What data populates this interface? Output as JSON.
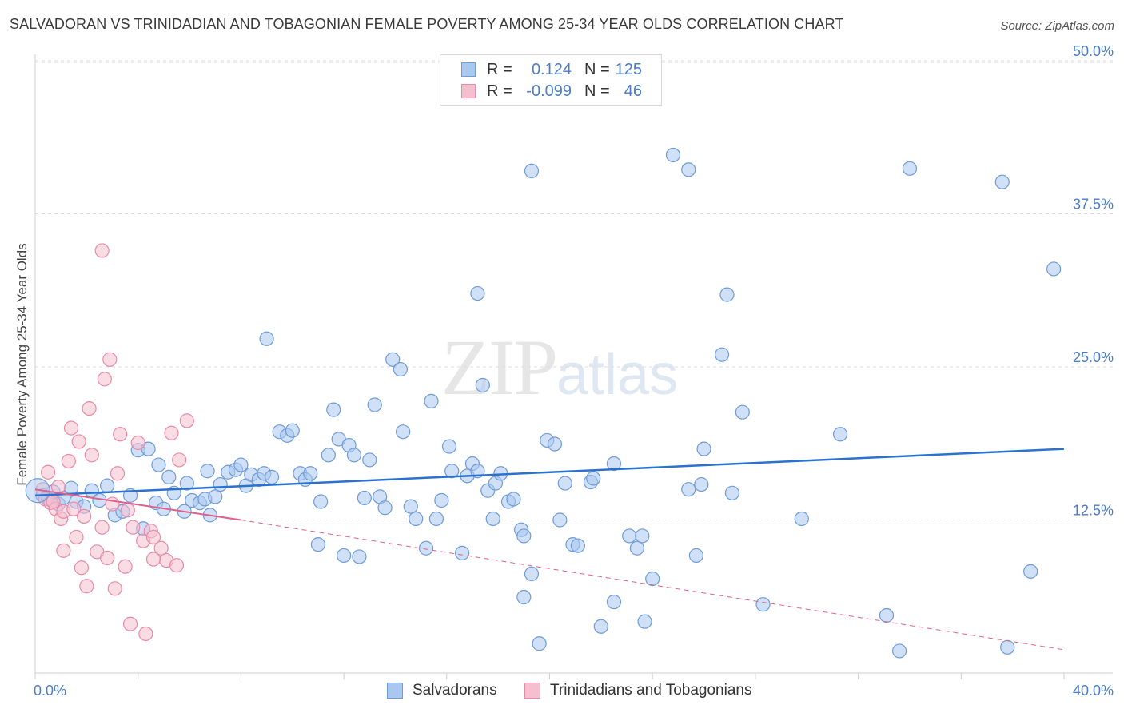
{
  "header": {
    "title": "SALVADORAN VS TRINIDADIAN AND TOBAGONIAN FEMALE POVERTY AMONG 25-34 YEAR OLDS CORRELATION CHART",
    "source": "Source: ZipAtlas.com"
  },
  "watermark": {
    "zip": "ZIP",
    "atlas": "atlas"
  },
  "legend_top": {
    "rows": [
      {
        "r_label": "R =",
        "r_value": "0.124",
        "n_label": "N =",
        "n_value": "125"
      },
      {
        "r_label": "R =",
        "r_value": "-0.099",
        "n_label": "N =",
        "n_value": "46"
      }
    ]
  },
  "legend_bottom": {
    "items": [
      {
        "label": "Salvadorans"
      },
      {
        "label": "Trinidadians and Tobagonians"
      }
    ]
  },
  "colors": {
    "blue_fill": "#a9c8f0",
    "blue_stroke": "#6e9bd9",
    "blue_line": "#2a72d0",
    "pink_fill": "#f5bfd0",
    "pink_stroke": "#e88aa8",
    "pink_line": "#e0608a",
    "grid": "#dcdcdc",
    "tick_text": "#4a7cc9"
  },
  "chart_data": {
    "type": "scatter",
    "title": "SALVADORAN VS TRINIDADIAN AND TOBAGONIAN FEMALE POVERTY AMONG 25-34 YEAR OLDS CORRELATION CHART",
    "xlabel": "",
    "ylabel": "Female Poverty Among 25-34 Year Olds",
    "xlim": [
      0,
      40
    ],
    "ylim": [
      0,
      50
    ],
    "x_tick_labels": [
      "0.0%",
      "40.0%"
    ],
    "y_ticks": [
      12.5,
      25.0,
      37.5,
      50.0
    ],
    "y_tick_labels": [
      "12.5%",
      "25.0%",
      "37.5%",
      "50.0%"
    ],
    "grid": true,
    "legend_position": "top-center",
    "series": [
      {
        "name": "Salvadorans",
        "trend": {
          "x": [
            0,
            40
          ],
          "y": [
            14.5,
            18.3
          ]
        },
        "points": [
          [
            0.3,
            14.5
          ],
          [
            0.5,
            14.2
          ],
          [
            0.7,
            14.8
          ],
          [
            0.9,
            13.8
          ],
          [
            1.1,
            14.3
          ],
          [
            1.4,
            15.1
          ],
          [
            1.6,
            14.0
          ],
          [
            1.9,
            13.6
          ],
          [
            2.2,
            14.9
          ],
          [
            2.5,
            14.1
          ],
          [
            2.8,
            15.3
          ],
          [
            3.1,
            12.9
          ],
          [
            3.4,
            13.2
          ],
          [
            3.7,
            14.5
          ],
          [
            4.0,
            18.2
          ],
          [
            4.2,
            11.8
          ],
          [
            4.4,
            18.3
          ],
          [
            4.7,
            13.9
          ],
          [
            5.0,
            13.4
          ],
          [
            5.2,
            16.0
          ],
          [
            5.4,
            14.7
          ],
          [
            5.8,
            13.2
          ],
          [
            5.9,
            15.5
          ],
          [
            6.1,
            14.1
          ],
          [
            6.4,
            13.9
          ],
          [
            6.6,
            14.2
          ],
          [
            6.8,
            12.9
          ],
          [
            7.0,
            14.4
          ],
          [
            7.2,
            15.4
          ],
          [
            7.5,
            16.4
          ],
          [
            7.8,
            16.6
          ],
          [
            8.0,
            17.0
          ],
          [
            8.2,
            15.3
          ],
          [
            8.4,
            16.2
          ],
          [
            8.7,
            15.8
          ],
          [
            8.9,
            16.3
          ],
          [
            9.2,
            16.0
          ],
          [
            9.5,
            19.7
          ],
          [
            9.0,
            27.3
          ],
          [
            9.8,
            19.4
          ],
          [
            10.0,
            19.8
          ],
          [
            10.3,
            16.3
          ],
          [
            10.5,
            15.8
          ],
          [
            10.7,
            16.3
          ],
          [
            11.1,
            14.0
          ],
          [
            11.0,
            10.5
          ],
          [
            11.4,
            17.8
          ],
          [
            11.6,
            21.5
          ],
          [
            11.8,
            19.1
          ],
          [
            12.0,
            9.6
          ],
          [
            12.2,
            18.6
          ],
          [
            12.4,
            17.8
          ],
          [
            12.6,
            9.5
          ],
          [
            13.0,
            17.4
          ],
          [
            13.2,
            21.9
          ],
          [
            13.4,
            14.4
          ],
          [
            13.6,
            13.5
          ],
          [
            13.9,
            25.6
          ],
          [
            14.2,
            24.8
          ],
          [
            14.6,
            13.6
          ],
          [
            14.8,
            12.6
          ],
          [
            15.2,
            10.2
          ],
          [
            15.4,
            22.2
          ],
          [
            15.6,
            12.6
          ],
          [
            15.8,
            14.1
          ],
          [
            16.1,
            18.5
          ],
          [
            16.2,
            16.5
          ],
          [
            16.6,
            9.8
          ],
          [
            16.8,
            16.1
          ],
          [
            17.0,
            17.1
          ],
          [
            17.2,
            16.5
          ],
          [
            17.4,
            23.5
          ],
          [
            17.6,
            14.9
          ],
          [
            17.8,
            12.6
          ],
          [
            17.9,
            15.5
          ],
          [
            17.2,
            31.0
          ],
          [
            18.1,
            16.3
          ],
          [
            18.4,
            14.0
          ],
          [
            18.6,
            14.2
          ],
          [
            18.9,
            11.7
          ],
          [
            19.0,
            11.2
          ],
          [
            19.3,
            41.0
          ],
          [
            19.3,
            8.1
          ],
          [
            19.0,
            6.2
          ],
          [
            19.6,
            2.4
          ],
          [
            19.9,
            19.0
          ],
          [
            20.2,
            18.7
          ],
          [
            20.4,
            12.5
          ],
          [
            20.6,
            15.5
          ],
          [
            20.9,
            10.5
          ],
          [
            21.1,
            10.4
          ],
          [
            21.6,
            15.6
          ],
          [
            21.7,
            15.9
          ],
          [
            22.0,
            3.8
          ],
          [
            22.5,
            17.1
          ],
          [
            22.5,
            5.8
          ],
          [
            23.1,
            11.2
          ],
          [
            23.4,
            10.2
          ],
          [
            23.6,
            11.2
          ],
          [
            23.7,
            4.2
          ],
          [
            24.0,
            7.7
          ],
          [
            24.8,
            42.3
          ],
          [
            25.4,
            41.1
          ],
          [
            25.4,
            15.0
          ],
          [
            25.7,
            9.6
          ],
          [
            25.9,
            15.4
          ],
          [
            26.0,
            18.3
          ],
          [
            26.7,
            26.0
          ],
          [
            26.9,
            30.9
          ],
          [
            27.1,
            14.7
          ],
          [
            27.5,
            21.3
          ],
          [
            28.3,
            5.6
          ],
          [
            29.8,
            12.6
          ],
          [
            31.3,
            19.5
          ],
          [
            33.1,
            4.7
          ],
          [
            33.6,
            1.8
          ],
          [
            34.0,
            41.2
          ],
          [
            37.6,
            40.1
          ],
          [
            37.8,
            2.1
          ],
          [
            38.7,
            8.3
          ],
          [
            39.6,
            33.0
          ],
          [
            12.8,
            14.3
          ],
          [
            14.3,
            19.7
          ],
          [
            6.7,
            16.5
          ],
          [
            4.8,
            17.0
          ]
        ]
      },
      {
        "name": "Trinidadians and Tobagonians",
        "trend": {
          "x": [
            0,
            8.0
          ],
          "y": [
            15.0,
            12.5
          ],
          "dashed_to": {
            "x": 40,
            "y": 1.9
          }
        },
        "points": [
          [
            0.3,
            15.0
          ],
          [
            0.4,
            14.2
          ],
          [
            0.5,
            16.4
          ],
          [
            0.6,
            13.9
          ],
          [
            0.8,
            13.4
          ],
          [
            0.9,
            15.2
          ],
          [
            1.0,
            12.6
          ],
          [
            1.1,
            13.2
          ],
          [
            1.3,
            17.3
          ],
          [
            1.4,
            20.0
          ],
          [
            1.5,
            13.4
          ],
          [
            1.6,
            11.1
          ],
          [
            1.7,
            18.9
          ],
          [
            1.9,
            12.8
          ],
          [
            2.1,
            21.6
          ],
          [
            2.2,
            17.8
          ],
          [
            2.4,
            9.9
          ],
          [
            2.6,
            11.9
          ],
          [
            2.7,
            24.0
          ],
          [
            2.9,
            25.6
          ],
          [
            3.0,
            13.8
          ],
          [
            3.2,
            16.3
          ],
          [
            3.3,
            19.5
          ],
          [
            3.6,
            13.3
          ],
          [
            3.8,
            11.9
          ],
          [
            4.0,
            18.8
          ],
          [
            4.2,
            10.8
          ],
          [
            4.5,
            11.6
          ],
          [
            4.6,
            11.1
          ],
          [
            4.9,
            10.2
          ],
          [
            5.1,
            9.2
          ],
          [
            5.3,
            19.6
          ],
          [
            5.6,
            17.4
          ],
          [
            5.9,
            20.6
          ],
          [
            1.1,
            10.0
          ],
          [
            1.8,
            8.6
          ],
          [
            2.0,
            7.1
          ],
          [
            2.8,
            9.4
          ],
          [
            3.1,
            6.9
          ],
          [
            3.5,
            8.7
          ],
          [
            3.7,
            4.0
          ],
          [
            4.3,
            3.2
          ],
          [
            4.6,
            9.3
          ],
          [
            5.5,
            8.8
          ],
          [
            2.6,
            34.5
          ],
          [
            0.7,
            14.0
          ]
        ]
      }
    ]
  }
}
